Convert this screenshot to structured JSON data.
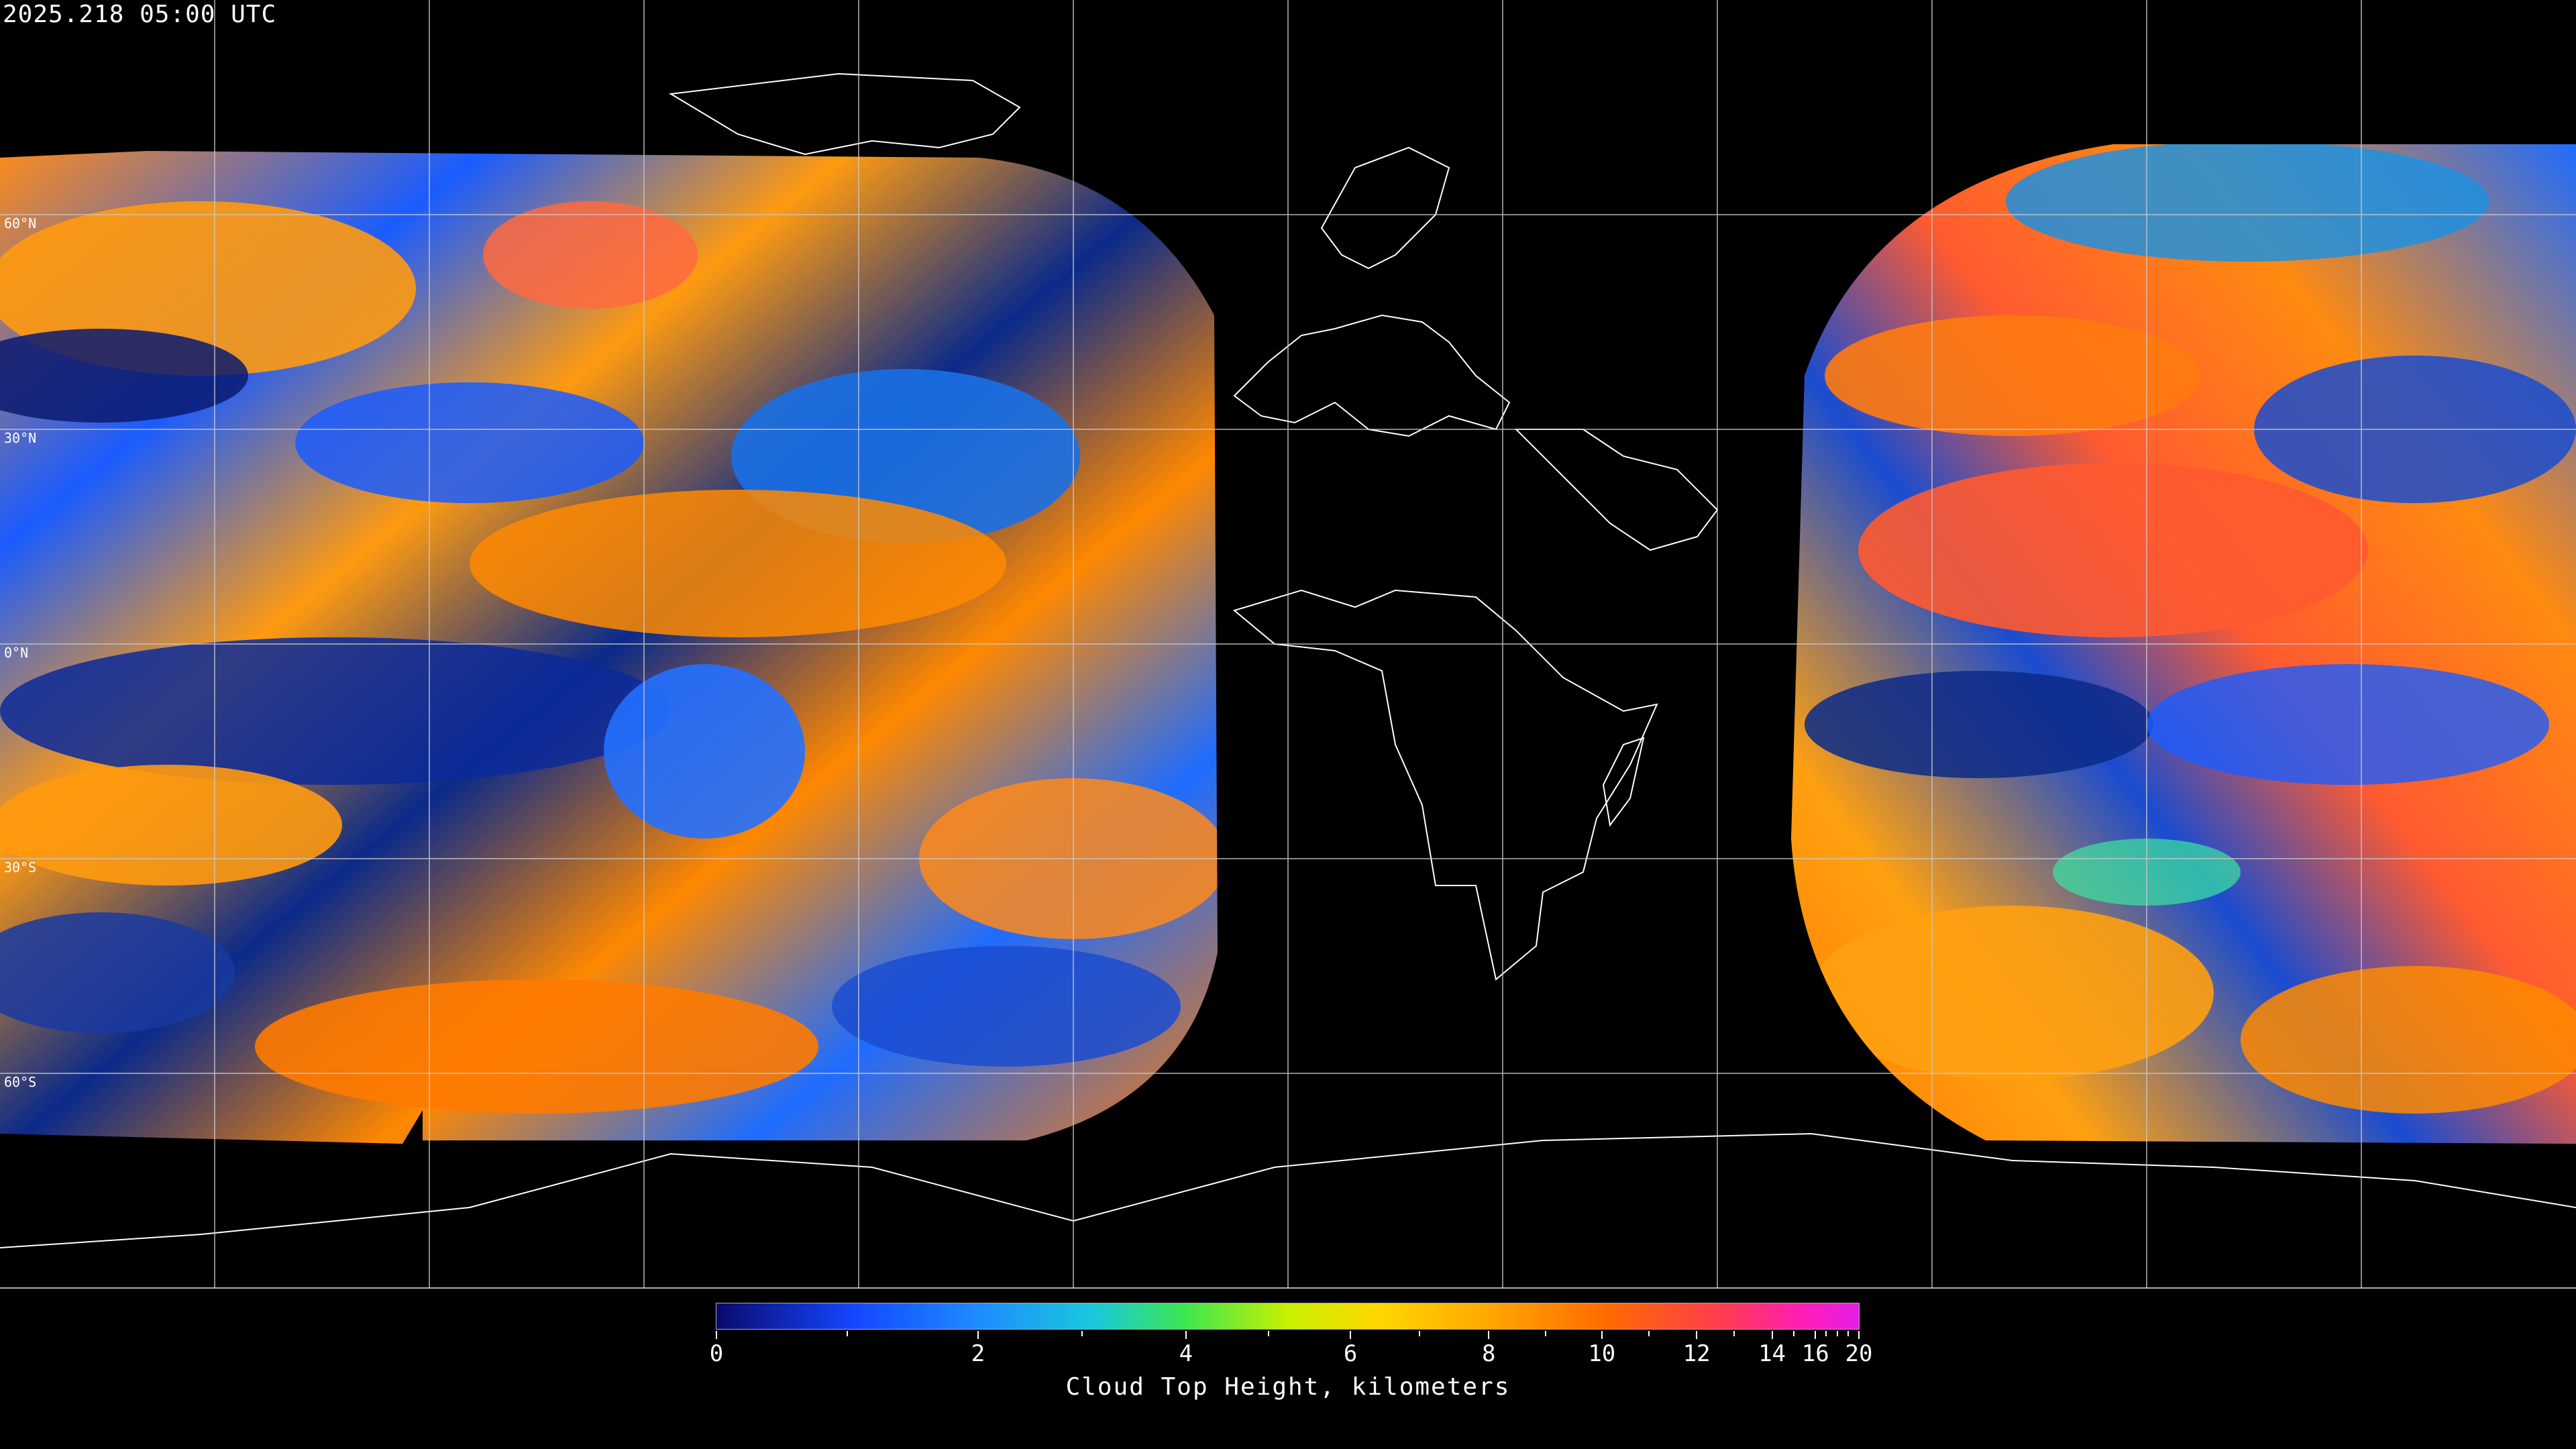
{
  "header": {
    "timestamp": "2025.218 05:00 UTC"
  },
  "map": {
    "projection": "equirectangular",
    "latitude_labels": [
      "60°N",
      "30°N",
      "0°N",
      "30°S",
      "60°S"
    ],
    "latitudes_deg": [
      60,
      30,
      0,
      -30,
      -60
    ],
    "no_data_color": "#000000",
    "gridline_color": "#c8c8c8",
    "coastline_color": "#ffffff"
  },
  "colorbar": {
    "title": "Cloud Top Height, kilometers",
    "unit": "kilometers",
    "range": [
      0,
      20
    ],
    "tick_labels": [
      "0",
      "2",
      "4",
      "6",
      "8",
      "10",
      "12",
      "14",
      "16",
      "20"
    ],
    "tick_values": [
      0,
      2,
      4,
      6,
      8,
      10,
      12,
      14,
      16,
      20
    ],
    "minor_tick_values": [
      1,
      3,
      5,
      7,
      9,
      11,
      13,
      15,
      17,
      18,
      19
    ],
    "colors": [
      "#0a0a6e",
      "#1447ff",
      "#1e8cff",
      "#19c8dc",
      "#3ce650",
      "#c8f000",
      "#ffd700",
      "#ffa500",
      "#ff6a00",
      "#ff3c50",
      "#ff1eb4",
      "#e61ee6"
    ]
  }
}
